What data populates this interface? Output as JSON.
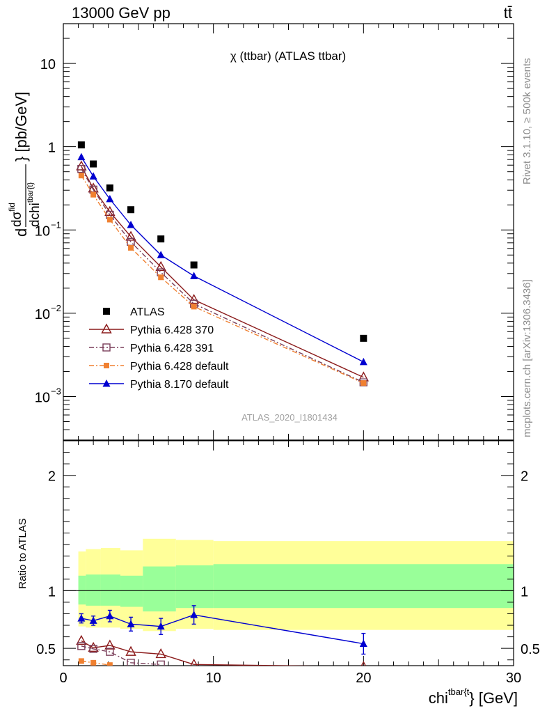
{
  "header": {
    "left": "13000 GeV pp",
    "right": "tt̄"
  },
  "side_labels": {
    "rivet": "Rivet 3.1.10, ≥ 500k events",
    "mcplots": "mcplots.cern.ch [arXiv:1306.3436]"
  },
  "colors": {
    "atlas": "#000000",
    "pythia_370": "#8b1a1a",
    "pythia_391": "#7a3f5a",
    "pythia_default_6": "#f08030",
    "pythia_8": "#0000d0",
    "band_inner": "#99ff99",
    "band_outer": "#ffff99"
  },
  "chart_data": [
    {
      "type": "line",
      "title": "χ (ttbar) (ATLAS ttbar)",
      "analysis_label": "ATLAS_2020_I1801434",
      "ylabel_parts": {
        "d1": "d",
        "num": "dσ",
        "num_sup": "fid",
        "den": "dchi",
        "den_sup": "tbar{t}",
        "units": "[pb/GeV]"
      },
      "xlim": [
        0,
        30
      ],
      "ylim": [
        0.0003,
        30
      ],
      "yscale": "log",
      "ytick_labels": {
        "1e-3": "10",
        "1e-3_exp": "−3",
        "1e-2": "10",
        "1e-2_exp": "−2",
        "1e-1": "10",
        "1e-1_exp": "−1",
        "1": "1",
        "10": "10"
      },
      "legend_position": "lower-left",
      "series": [
        {
          "name": "ATLAS",
          "marker": "square-filled",
          "line": "none",
          "x": [
            1.2,
            2.0,
            3.1,
            4.5,
            6.5,
            8.7,
            20.0
          ],
          "y": [
            1.05,
            0.62,
            0.32,
            0.175,
            0.078,
            0.038,
            0.005
          ]
        },
        {
          "name": "Pythia 6.428 370",
          "marker": "triangle-open",
          "line": "solid",
          "x": [
            1.2,
            2.0,
            3.1,
            4.5,
            6.5,
            8.7,
            20.0
          ],
          "y": [
            0.58,
            0.315,
            0.165,
            0.083,
            0.036,
            0.0145,
            0.0017
          ]
        },
        {
          "name": "Pythia 6.428 391",
          "marker": "square-open",
          "line": "dashdot",
          "x": [
            1.2,
            2.0,
            3.1,
            4.5,
            6.5,
            8.7,
            20.0
          ],
          "y": [
            0.54,
            0.305,
            0.152,
            0.072,
            0.031,
            0.013,
            0.00148
          ]
        },
        {
          "name": "Pythia 6.428 default",
          "marker": "square-filled-small",
          "line": "dashdot",
          "x": [
            1.2,
            2.0,
            3.1,
            4.5,
            6.5,
            8.7,
            20.0
          ],
          "y": [
            0.45,
            0.265,
            0.133,
            0.061,
            0.027,
            0.012,
            0.00145
          ]
        },
        {
          "name": "Pythia 8.170 default",
          "marker": "triangle-filled",
          "line": "solid",
          "x": [
            1.2,
            2.0,
            3.1,
            4.5,
            6.5,
            8.7,
            20.0
          ],
          "y": [
            0.75,
            0.44,
            0.235,
            0.115,
            0.05,
            0.028,
            0.0026
          ]
        }
      ]
    },
    {
      "type": "line",
      "ylabel": "Ratio to ATLAS",
      "xlabel_parts": {
        "base": "chi",
        "sup": "tbar{t",
        "tail": "} [GeV]"
      },
      "xlim": [
        0,
        30
      ],
      "ylim": [
        0.35,
        2.3
      ],
      "x_tick_labels": [
        "0",
        "10",
        "20",
        "30"
      ],
      "y_tick_labels": [
        "0.5",
        "1",
        "2"
      ],
      "reference_line": 1,
      "bands": {
        "edges": [
          1,
          1.5,
          2.5,
          3.8,
          5.3,
          7.5,
          10,
          30
        ],
        "inner_low": [
          0.88,
          0.87,
          0.87,
          0.86,
          0.82,
          0.85,
          0.85
        ],
        "inner_high": [
          1.13,
          1.14,
          1.14,
          1.13,
          1.21,
          1.22,
          1.23
        ],
        "outer_low": [
          0.69,
          0.68,
          0.68,
          0.67,
          0.65,
          0.67,
          0.66
        ],
        "outer_high": [
          1.34,
          1.36,
          1.37,
          1.35,
          1.45,
          1.44,
          1.43
        ]
      },
      "series": [
        {
          "name": "Pythia 6.428 370",
          "x": [
            1.2,
            2.0,
            3.1,
            4.5,
            6.5,
            8.7,
            20.0
          ],
          "y": [
            0.565,
            0.505,
            0.525,
            0.47,
            0.45,
            0.36,
            0.34
          ]
        },
        {
          "name": "Pythia 6.428 391",
          "x": [
            1.2,
            2.0,
            3.1,
            4.5,
            6.5
          ],
          "y": [
            0.52,
            0.495,
            0.47,
            0.375,
            0.36
          ]
        },
        {
          "name": "Pythia 6.428 default",
          "x": [
            1.2,
            2.0,
            3.1
          ],
          "y": [
            0.39,
            0.375,
            0.355
          ]
        },
        {
          "name": "Pythia 8.170 default",
          "x": [
            1.2,
            2.0,
            3.1,
            4.5,
            6.5,
            8.7,
            20.0
          ],
          "y": [
            0.76,
            0.74,
            0.78,
            0.71,
            0.69,
            0.79,
            0.54
          ],
          "err": [
            0.04,
            0.04,
            0.05,
            0.06,
            0.07,
            0.08,
            0.09
          ]
        }
      ]
    }
  ]
}
